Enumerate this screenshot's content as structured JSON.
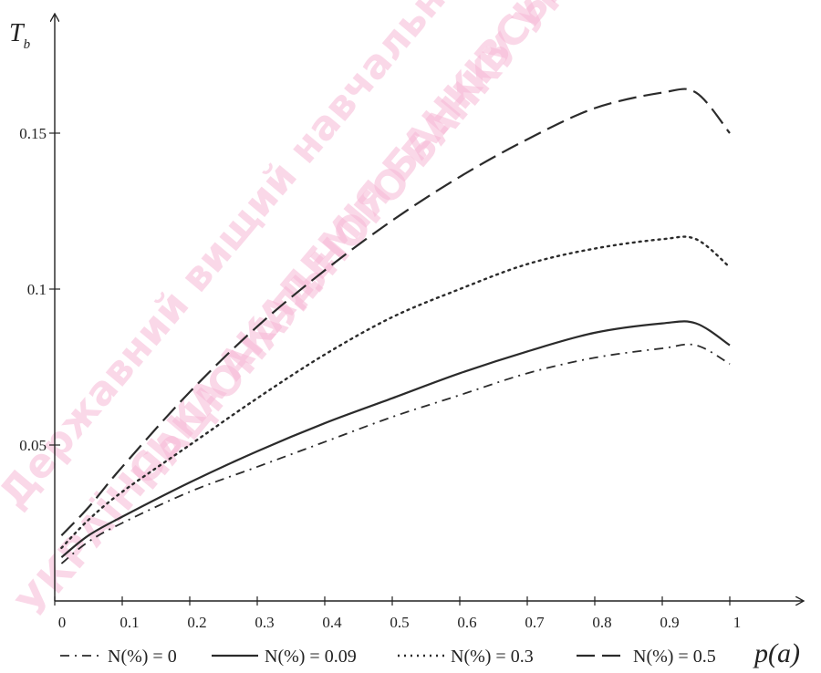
{
  "chart_data": {
    "type": "line",
    "xlabel": "p(a)",
    "ylabel": "T_b",
    "xlim": [
      0,
      1.05
    ],
    "ylim": [
      0,
      0.18
    ],
    "x_ticks": [
      {
        "value": 0,
        "label": "0"
      },
      {
        "value": 0.1,
        "label": "0.1"
      },
      {
        "value": 0.2,
        "label": "0.2"
      },
      {
        "value": 0.3,
        "label": "0.3"
      },
      {
        "value": 0.4,
        "label": "0.4"
      },
      {
        "value": 0.5,
        "label": "0.5"
      },
      {
        "value": 0.6,
        "label": "0.6"
      },
      {
        "value": 0.7,
        "label": "0.7"
      },
      {
        "value": 0.8,
        "label": "0.8"
      },
      {
        "value": 0.9,
        "label": "0.9"
      },
      {
        "value": 1,
        "label": "1"
      }
    ],
    "y_ticks": [
      {
        "value": 0.05,
        "label": "0.05"
      },
      {
        "value": 0.1,
        "label": "0.1"
      },
      {
        "value": 0.15,
        "label": "0.15"
      }
    ],
    "grid": false,
    "legend_position": "bottom",
    "x": [
      0.01,
      0.05,
      0.1,
      0.2,
      0.3,
      0.4,
      0.5,
      0.6,
      0.7,
      0.8,
      0.9,
      0.95,
      1.0
    ],
    "series": [
      {
        "name": "N(%) = 0",
        "dash": "dash-dot",
        "values": [
          0.012,
          0.019,
          0.025,
          0.035,
          0.043,
          0.051,
          0.059,
          0.066,
          0.073,
          0.078,
          0.081,
          0.082,
          0.076
        ]
      },
      {
        "name": "N(%) = 0.09",
        "dash": "solid",
        "values": [
          0.014,
          0.021,
          0.027,
          0.038,
          0.048,
          0.057,
          0.065,
          0.073,
          0.08,
          0.086,
          0.089,
          0.089,
          0.082
        ]
      },
      {
        "name": "N(%) = 0.3",
        "dash": "dotted",
        "values": [
          0.017,
          0.026,
          0.035,
          0.05,
          0.065,
          0.079,
          0.091,
          0.1,
          0.108,
          0.113,
          0.116,
          0.116,
          0.107
        ]
      },
      {
        "name": "N(%) = 0.5",
        "dash": "long-dash",
        "values": [
          0.021,
          0.03,
          0.043,
          0.067,
          0.088,
          0.106,
          0.122,
          0.136,
          0.148,
          0.158,
          0.163,
          0.163,
          0.15
        ]
      }
    ]
  },
  "watermark": {
    "lines": [
      "Державний вищий навчальний заклад",
      "УКРАЇНСЬКА АКАДЕМІЯ БАНКІВСЬКОЇ СПРАВИ",
      "НАЦІОНАЛЬНОГО БАНКУ УКРАЇНИ"
    ]
  }
}
